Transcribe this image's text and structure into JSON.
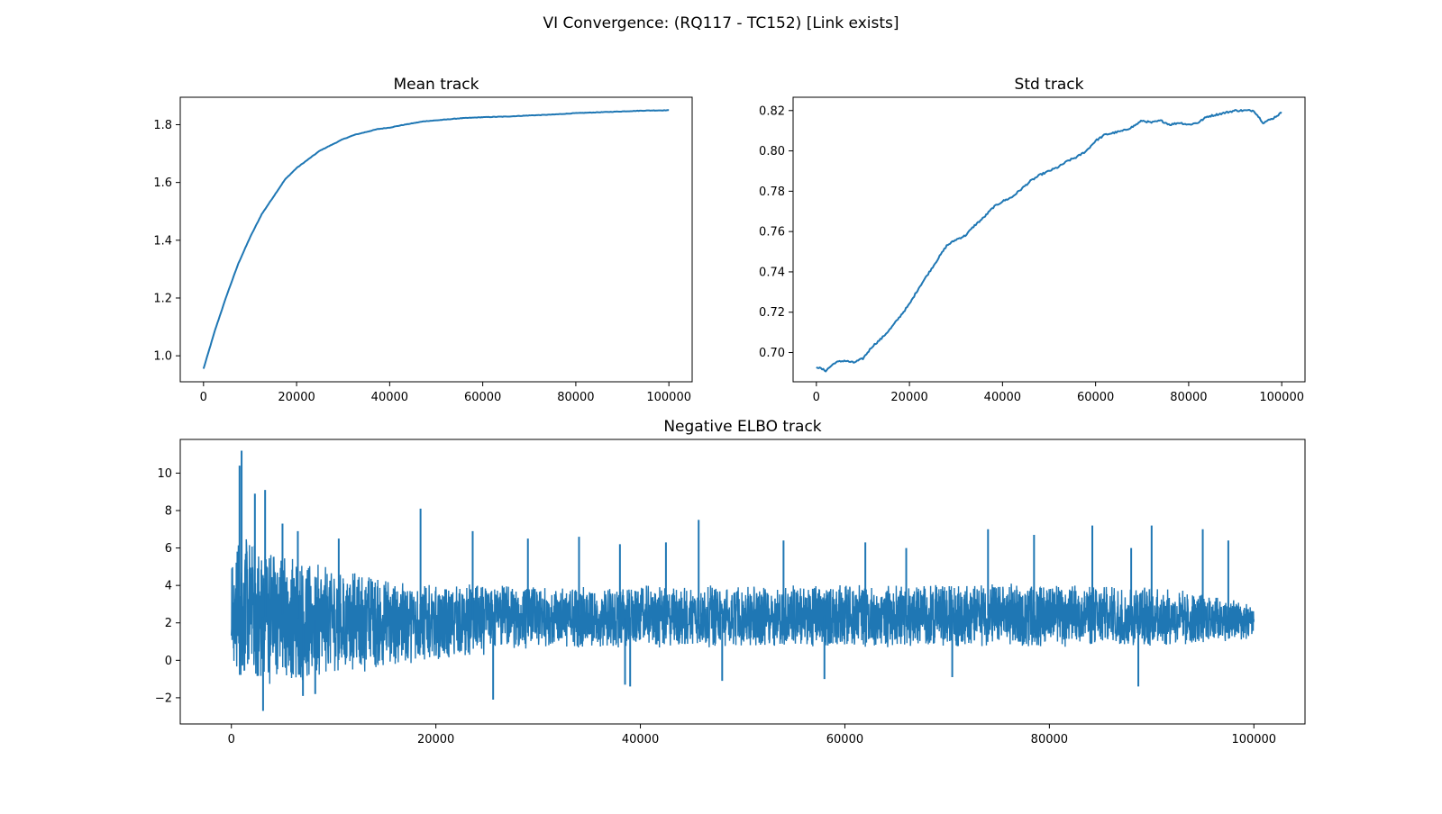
{
  "figure": {
    "suptitle": "VI Convergence: (RQ117 - TC152) [Link exists]"
  },
  "chart_data": [
    {
      "id": "mean",
      "type": "line",
      "title": "Mean track",
      "xlabel": "",
      "ylabel": "",
      "xlim": [
        -5000,
        105000
      ],
      "ylim": [
        0.91,
        1.895
      ],
      "xticks": [
        0,
        20000,
        40000,
        60000,
        80000,
        100000
      ],
      "yticks": [
        1.0,
        1.2,
        1.4,
        1.6,
        1.8
      ],
      "ytick_labels": [
        "1.0",
        "1.2",
        "1.4",
        "1.6",
        "1.8"
      ],
      "color": "#1f77b4",
      "series": [
        {
          "x": [
            0,
            2500,
            5000,
            7500,
            10000,
            12500,
            15000,
            17500,
            20000,
            22500,
            25000,
            27500,
            30000,
            32500,
            35000,
            37500,
            40000,
            42500,
            45000,
            47500,
            50000,
            55000,
            60000,
            65000,
            70000,
            75000,
            80000,
            85000,
            90000,
            95000,
            100000
          ],
          "y": [
            0.955,
            1.09,
            1.21,
            1.32,
            1.41,
            1.49,
            1.55,
            1.61,
            1.65,
            1.68,
            1.71,
            1.73,
            1.75,
            1.765,
            1.775,
            1.785,
            1.79,
            1.798,
            1.805,
            1.812,
            1.815,
            1.822,
            1.826,
            1.828,
            1.832,
            1.835,
            1.84,
            1.843,
            1.846,
            1.849,
            1.85
          ]
        }
      ]
    },
    {
      "id": "std",
      "type": "line",
      "title": "Std track",
      "xlabel": "",
      "ylabel": "",
      "xlim": [
        -5000,
        105000
      ],
      "ylim": [
        0.6855,
        0.8266
      ],
      "xticks": [
        0,
        20000,
        40000,
        60000,
        80000,
        100000
      ],
      "yticks": [
        0.7,
        0.72,
        0.74,
        0.76,
        0.78,
        0.8,
        0.82
      ],
      "ytick_labels": [
        "0.70",
        "0.72",
        "0.74",
        "0.76",
        "0.78",
        "0.80",
        "0.82"
      ],
      "color": "#1f77b4",
      "series": [
        {
          "x": [
            0,
            2000,
            4000,
            6000,
            8000,
            10000,
            12000,
            14000,
            16000,
            18000,
            20000,
            22000,
            24000,
            26000,
            28000,
            30000,
            32000,
            34000,
            36000,
            38000,
            40000,
            42000,
            44000,
            46000,
            48000,
            50000,
            52000,
            54000,
            56000,
            58000,
            60000,
            62000,
            64000,
            66000,
            68000,
            70000,
            72000,
            74000,
            76000,
            78000,
            80000,
            82000,
            84000,
            86000,
            88000,
            90000,
            92000,
            94000,
            96000,
            98000,
            100000
          ],
          "y": [
            0.693,
            0.691,
            0.695,
            0.696,
            0.695,
            0.697,
            0.703,
            0.707,
            0.712,
            0.718,
            0.724,
            0.732,
            0.739,
            0.746,
            0.753,
            0.756,
            0.758,
            0.763,
            0.767,
            0.772,
            0.775,
            0.777,
            0.781,
            0.785,
            0.788,
            0.79,
            0.792,
            0.795,
            0.797,
            0.8,
            0.805,
            0.808,
            0.809,
            0.81,
            0.812,
            0.815,
            0.814,
            0.815,
            0.813,
            0.814,
            0.813,
            0.814,
            0.817,
            0.818,
            0.819,
            0.82,
            0.82,
            0.82,
            0.814,
            0.816,
            0.819
          ]
        }
      ]
    },
    {
      "id": "elbo",
      "type": "line",
      "title": "Negative ELBO track",
      "xlabel": "",
      "ylabel": "",
      "xlim": [
        -5000,
        105000
      ],
      "ylim": [
        -3.4,
        11.8
      ],
      "xticks": [
        0,
        20000,
        40000,
        60000,
        80000,
        100000
      ],
      "yticks": [
        -2,
        0,
        2,
        4,
        6,
        8,
        10
      ],
      "ytick_labels": [
        "−2",
        "0",
        "2",
        "4",
        "6",
        "8",
        "10"
      ],
      "color": "#1f77b4",
      "series": [
        {
          "x": [
            0,
            1000,
            2000,
            3000,
            5000,
            7500,
            10000,
            15000,
            20000,
            25000,
            30000,
            40000,
            50000,
            60000,
            70000,
            80000,
            90000,
            100000
          ],
          "y_lower": [
            -0.4,
            -1.6,
            -1.4,
            -1.9,
            -1.3,
            -1.4,
            -0.9,
            -0.6,
            -0.2,
            0.2,
            0.5,
            0.5,
            0.6,
            0.6,
            0.6,
            0.6,
            0.6,
            1.0
          ],
          "y_upper": [
            6.2,
            7.0,
            6.8,
            6.5,
            6.2,
            5.6,
            5.2,
            4.6,
            4.2,
            4.2,
            4.1,
            4.1,
            4.1,
            4.2,
            4.2,
            4.2,
            4.1,
            3.2
          ],
          "spikes": [
            [
              1000,
              11.2
            ],
            [
              800,
              10.4
            ],
            [
              3300,
              9.1
            ],
            [
              2300,
              8.9
            ],
            [
              5000,
              7.3
            ],
            [
              6500,
              6.9
            ],
            [
              10500,
              6.5
            ],
            [
              18500,
              8.1
            ],
            [
              23600,
              6.9
            ],
            [
              29000,
              6.5
            ],
            [
              34000,
              6.6
            ],
            [
              38000,
              6.2
            ],
            [
              45700,
              7.5
            ],
            [
              54000,
              6.4
            ],
            [
              62000,
              6.3
            ],
            [
              74000,
              7.0
            ],
            [
              78500,
              6.7
            ],
            [
              84200,
              7.2
            ],
            [
              90000,
              7.2
            ],
            [
              95000,
              7.0
            ],
            [
              97500,
              6.4
            ],
            [
              42500,
              6.3
            ],
            [
              66000,
              6.0
            ],
            [
              88000,
              6.0
            ]
          ],
          "dips": [
            [
              3100,
              -2.7
            ],
            [
              7000,
              -1.9
            ],
            [
              25600,
              -2.1
            ],
            [
              38500,
              -1.3
            ],
            [
              39000,
              -1.4
            ],
            [
              48000,
              -1.1
            ],
            [
              58000,
              -1.0
            ],
            [
              70500,
              -0.9
            ],
            [
              88700,
              -1.4
            ],
            [
              8200,
              -1.8
            ]
          ]
        }
      ]
    }
  ]
}
